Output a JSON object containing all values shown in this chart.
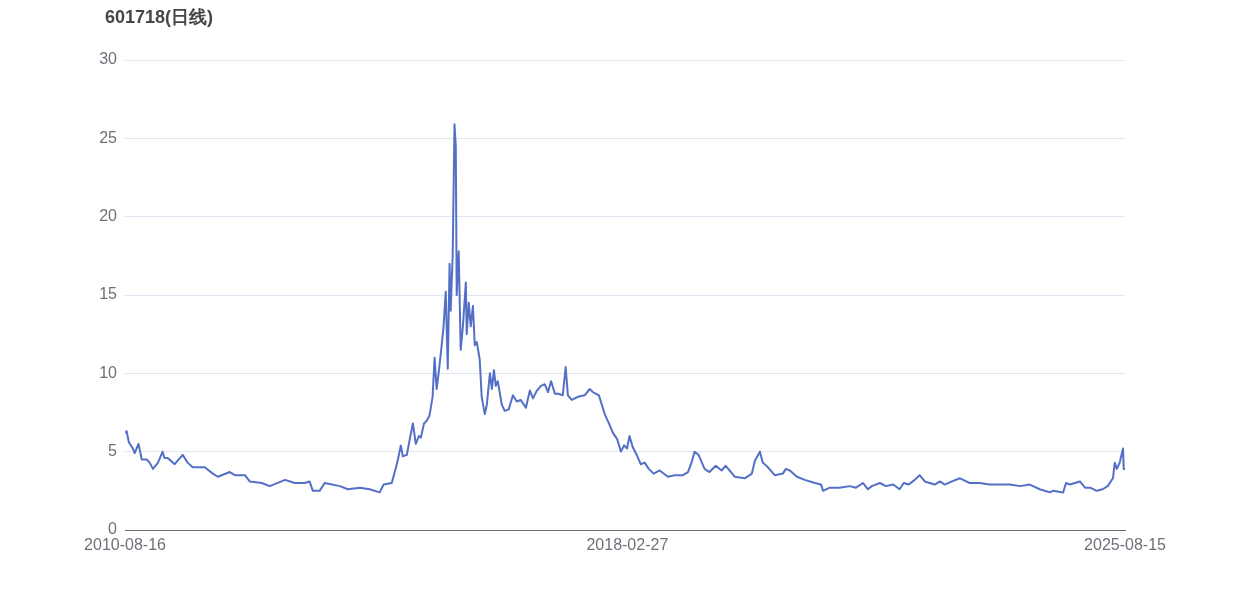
{
  "chart_data": {
    "type": "line",
    "title": "601718(日线)",
    "x": [
      "2010-08-16",
      "2010-08-25",
      "2010-09-06",
      "2010-09-28",
      "2010-10-08",
      "2010-10-29",
      "2010-11-16",
      "2010-12-13",
      "2010-12-29",
      "2011-01-16",
      "2011-02-13",
      "2011-03-10",
      "2011-03-20",
      "2011-04-07",
      "2011-05-15",
      "2011-06-28",
      "2011-07-25",
      "2011-08-22",
      "2011-10-27",
      "2011-12-10",
      "2012-01-07",
      "2012-03-12",
      "2012-04-09",
      "2012-06-03",
      "2012-06-29",
      "2012-09-04",
      "2012-10-17",
      "2013-01-09",
      "2013-03-03",
      "2013-04-26",
      "2013-05-23",
      "2013-06-10",
      "2013-07-17",
      "2013-08-14",
      "2013-11-05",
      "2013-12-19",
      "2014-02-23",
      "2014-04-17",
      "2014-06-11",
      "2014-07-03",
      "2014-08-16",
      "2014-09-02",
      "2014-09-19",
      "2014-10-05",
      "2014-10-16",
      "2014-11-07",
      "2014-11-23",
      "2014-12-10",
      "2014-12-26",
      "2015-01-12",
      "2015-01-23",
      "2015-02-09",
      "2015-02-25",
      "2015-03-11",
      "2015-03-28",
      "2015-04-08",
      "2015-04-19",
      "2015-04-30",
      "2015-05-16",
      "2015-05-27",
      "2015-06-08",
      "2015-06-19",
      "2015-06-29",
      "2015-07-05",
      "2015-07-16",
      "2015-07-26",
      "2015-08-02",
      "2015-08-07",
      "2015-08-18",
      "2015-08-29",
      "2015-09-10",
      "2015-09-26",
      "2015-10-01",
      "2015-10-12",
      "2015-10-23",
      "2015-11-04",
      "2015-11-14",
      "2015-11-25",
      "2015-12-11",
      "2015-12-22",
      "2016-01-08",
      "2016-01-19",
      "2016-02-05",
      "2016-02-16",
      "2016-02-27",
      "2016-03-08",
      "2016-03-19",
      "2016-04-10",
      "2016-04-26",
      "2016-05-18",
      "2016-06-10",
      "2016-07-01",
      "2016-07-23",
      "2016-08-20",
      "2016-09-11",
      "2016-09-28",
      "2016-10-19",
      "2016-11-11",
      "2016-12-02",
      "2016-12-19",
      "2017-01-05",
      "2017-01-26",
      "2017-02-13",
      "2017-03-10",
      "2017-03-26",
      "2017-04-07",
      "2017-04-28",
      "2017-06-01",
      "2017-07-08",
      "2017-08-05",
      "2017-08-22",
      "2017-09-24",
      "2017-10-10",
      "2017-10-26",
      "2017-11-18",
      "2017-12-10",
      "2018-01-02",
      "2018-01-23",
      "2018-02-09",
      "2018-02-25",
      "2018-03-11",
      "2018-03-28",
      "2018-04-19",
      "2018-05-11",
      "2018-06-02",
      "2018-06-24",
      "2018-07-21",
      "2018-08-23",
      "2018-10-07",
      "2018-11-14",
      "2018-12-28",
      "2019-01-25",
      "2019-02-16",
      "2019-03-02",
      "2019-03-24",
      "2019-04-26",
      "2019-05-23",
      "2019-06-26",
      "2019-07-28",
      "2019-08-20",
      "2019-10-08",
      "2019-12-02",
      "2020-01-10",
      "2020-01-26",
      "2020-02-23",
      "2020-03-10",
      "2020-04-07",
      "2020-05-14",
      "2020-06-28",
      "2020-07-14",
      "2020-08-05",
      "2020-09-13",
      "2020-10-26",
      "2020-12-20",
      "2021-01-23",
      "2021-02-03",
      "2021-03-11",
      "2021-05-05",
      "2021-06-29",
      "2021-08-02",
      "2021-09-10",
      "2021-10-07",
      "2021-10-28",
      "2021-12-11",
      "2022-01-14",
      "2022-02-22",
      "2022-03-29",
      "2022-04-21",
      "2022-05-18",
      "2022-06-20",
      "2022-07-17",
      "2022-08-14",
      "2022-10-08",
      "2022-11-05",
      "2022-12-02",
      "2023-01-10",
      "2023-02-23",
      "2023-04-17",
      "2023-06-11",
      "2023-08-05",
      "2023-09-29",
      "2023-11-23",
      "2024-01-17",
      "2024-03-11",
      "2024-05-05",
      "2024-06-29",
      "2024-07-16",
      "2024-09-10",
      "2024-09-26",
      "2024-10-17",
      "2024-11-14",
      "2024-12-11",
      "2025-01-08",
      "2025-02-05",
      "2025-03-13",
      "2025-04-15",
      "2025-05-12",
      "2025-06-10",
      "2025-06-20",
      "2025-07-01",
      "2025-07-17",
      "2025-08-04",
      "2025-08-08",
      "2025-08-15"
    ],
    "series": [
      {
        "color": "#5470c6",
        "values": [
          6.2,
          6.3,
          5.6,
          5.2,
          4.9,
          5.5,
          4.5,
          4.5,
          4.3,
          3.9,
          4.3,
          5.0,
          4.6,
          4.6,
          4.2,
          4.8,
          4.3,
          4.0,
          4.0,
          3.6,
          3.4,
          3.7,
          3.5,
          3.5,
          3.1,
          3.0,
          2.8,
          3.2,
          3.0,
          3.0,
          3.1,
          2.5,
          2.5,
          3.0,
          2.8,
          2.6,
          2.7,
          2.6,
          2.4,
          2.9,
          3.0,
          3.7,
          4.5,
          5.4,
          4.7,
          4.8,
          5.8,
          6.8,
          5.5,
          6.0,
          5.9,
          6.8,
          7.0,
          7.3,
          8.5,
          11.0,
          9.0,
          10.0,
          11.7,
          13.0,
          15.2,
          10.3,
          17.0,
          14.0,
          17.5,
          25.9,
          24.5,
          15.0,
          17.8,
          11.5,
          13.0,
          15.8,
          12.5,
          14.5,
          13.0,
          14.3,
          11.8,
          12.0,
          10.9,
          8.5,
          7.4,
          8.0,
          10.0,
          9.0,
          10.2,
          9.2,
          9.5,
          8.0,
          7.6,
          7.7,
          8.6,
          8.2,
          8.3,
          7.8,
          8.9,
          8.4,
          8.9,
          9.2,
          9.3,
          8.8,
          9.5,
          8.7,
          8.7,
          8.6,
          10.4,
          8.6,
          8.3,
          8.5,
          8.6,
          9.0,
          8.8,
          8.6,
          8.0,
          7.4,
          6.8,
          6.2,
          5.8,
          5.0,
          5.4,
          5.2,
          6.0,
          5.3,
          4.8,
          4.2,
          4.3,
          3.9,
          3.6,
          3.8,
          3.4,
          3.5,
          3.5,
          3.7,
          4.4,
          5.0,
          4.8,
          3.9,
          3.7,
          4.1,
          3.8,
          4.1,
          3.4,
          3.3,
          3.6,
          4.4,
          5.0,
          4.3,
          4.0,
          3.5,
          3.6,
          3.9,
          3.8,
          3.4,
          3.2,
          3.0,
          2.9,
          2.5,
          2.7,
          2.7,
          2.8,
          2.7,
          3.0,
          2.6,
          2.8,
          3.0,
          2.8,
          2.9,
          2.6,
          3.0,
          2.9,
          3.2,
          3.5,
          3.1,
          2.9,
          3.1,
          2.9,
          3.1,
          3.3,
          3.0,
          3.0,
          2.9,
          2.9,
          2.9,
          2.8,
          2.9,
          2.6,
          2.4,
          2.5,
          2.4,
          3.0,
          2.9,
          3.0,
          3.1,
          2.7,
          2.7,
          2.5,
          2.6,
          2.8,
          3.3,
          4.3,
          3.9,
          4.3,
          5.2,
          3.9,
          3.9
        ]
      }
    ],
    "xlim": [
      "2010-08-16",
      "2025-08-15"
    ],
    "xticks": [
      "2010-08-16",
      "2018-02-27",
      "2025-08-15"
    ],
    "ylim": [
      0,
      30
    ],
    "yticks": [
      0,
      5,
      10,
      15,
      20,
      25,
      30
    ],
    "grid": "y",
    "legend": false,
    "marker": "none",
    "line_style": "solid"
  }
}
